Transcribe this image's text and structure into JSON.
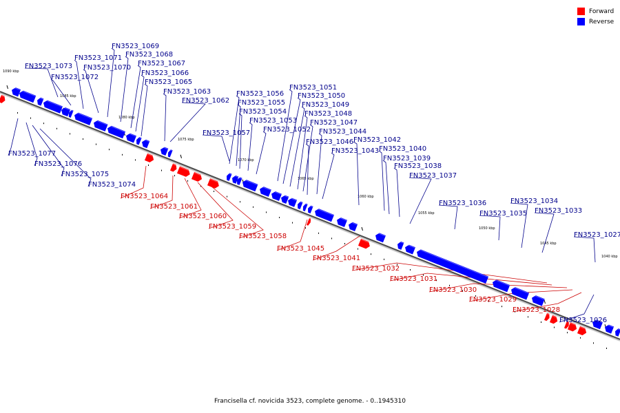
{
  "caption": "Francisella cf. novicida 3523, complete genome. - 0..1945310",
  "legend": [
    {
      "label": "Forward",
      "color": "#ff0000"
    },
    {
      "label": "Reverse",
      "color": "#0000ff"
    }
  ],
  "colors": {
    "forward": "#ff0000",
    "reverse": "#0000ff",
    "forward_label": "#cc0000",
    "reverse_label": "#00008b"
  },
  "kbp_labels": [
    "1090 kbp",
    "1085 kbp",
    "1080 kbp",
    "1075 kbp",
    "1070 kbp",
    "1065 kbp",
    "1060 kbp",
    "1055 kbp",
    "1050 kbp",
    "1045 kbp",
    "1040 kbp"
  ],
  "reverse_genes": [
    "FN3523_1073",
    "FN3523_1072",
    "FN3523_1071",
    "FN3523_1070",
    "FN3523_1069",
    "FN3523_1068",
    "FN3523_1067",
    "FN3523_1066",
    "FN3523_1065",
    "FN3523_1063",
    "FN3523_1062",
    "FN3523_1057",
    "FN3523_1056",
    "FN3523_1055",
    "FN3523_1054",
    "FN3523_1053",
    "FN3523_1052",
    "FN3523_1051",
    "FN3523_1050",
    "FN3523_1049",
    "FN3523_1048",
    "FN3523_1047",
    "FN3523_1044",
    "FN3523_1046",
    "FN3523_1043",
    "FN3523_1042",
    "FN3523_1040",
    "FN3523_1039",
    "FN3523_1038",
    "FN3523_1037",
    "FN3523_1036",
    "FN3523_1035",
    "FN3523_1034",
    "FN3523_1033",
    "FN3523_1027",
    "FN3523_1077",
    "FN3523_1076",
    "FN3523_1075",
    "FN3523_1074",
    "FN3523_1026"
  ],
  "forward_genes": [
    "FN3523_1064",
    "FN3523_1061",
    "FN3523_1060",
    "FN3523_1059",
    "FN3523_1058",
    "FN3523_1045",
    "FN3523_1041",
    "FN3523_1032",
    "FN3523_1031",
    "FN3523_1030",
    "FN3523_1029",
    "FN3523_1028"
  ]
}
